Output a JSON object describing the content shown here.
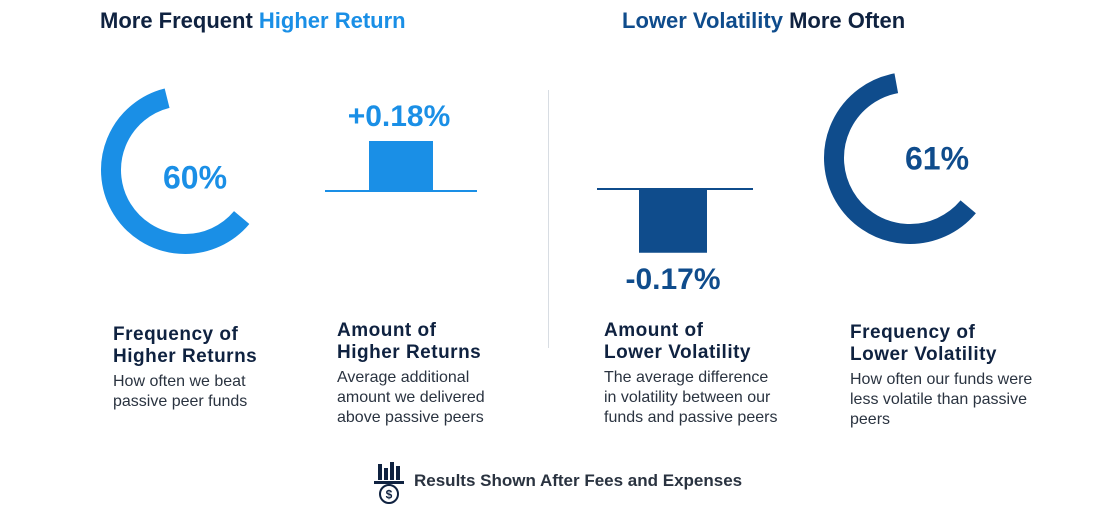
{
  "left_section": {
    "title_part1": "More Frequent ",
    "title_part2": "Higher Return"
  },
  "right_section": {
    "title_part1": "Lower Volatility",
    "title_part2": " More Often"
  },
  "colors": {
    "light_blue": "#1a8fe6",
    "dark_blue": "#0f4c8c",
    "navy": "#0f2240"
  },
  "chart_data": [
    {
      "type": "ring",
      "name": "Frequency of Higher Returns",
      "value": 60,
      "label": "60%",
      "color": "#1a8fe6"
    },
    {
      "type": "bar",
      "name": "Amount of Higher Returns",
      "value": 0.18,
      "label": "+0.18%",
      "color": "#1a8fe6"
    },
    {
      "type": "bar",
      "name": "Amount of Lower Volatility",
      "value": -0.17,
      "label": "-0.17%",
      "color": "#0f4c8c"
    },
    {
      "type": "ring",
      "name": "Frequency of Lower Volatility",
      "value": 61,
      "label": "61%",
      "color": "#0f4c8c"
    }
  ],
  "metrics": [
    {
      "title_line1": "Frequency of",
      "title_line2": "Higher Returns",
      "desc_line1": "How often we beat",
      "desc_line2": "passive peer funds",
      "desc_line3": ""
    },
    {
      "title_line1": "Amount of",
      "title_line2": "Higher Returns",
      "desc_line1": "Average additional",
      "desc_line2": "amount we delivered",
      "desc_line3": "above passive peers"
    },
    {
      "title_line1": "Amount of",
      "title_line2": "Lower Volatility",
      "desc_line1": "The average difference",
      "desc_line2": "in volatility between our",
      "desc_line3": "funds and passive peers"
    },
    {
      "title_line1": "Frequency of",
      "title_line2": "Lower Volatility",
      "desc_line1": "How often our funds were",
      "desc_line2": "less volatile than passive",
      "desc_line3": "peers"
    }
  ],
  "footer": {
    "icon": "chart-dollar-icon",
    "text": "Results Shown After Fees and Expenses"
  }
}
